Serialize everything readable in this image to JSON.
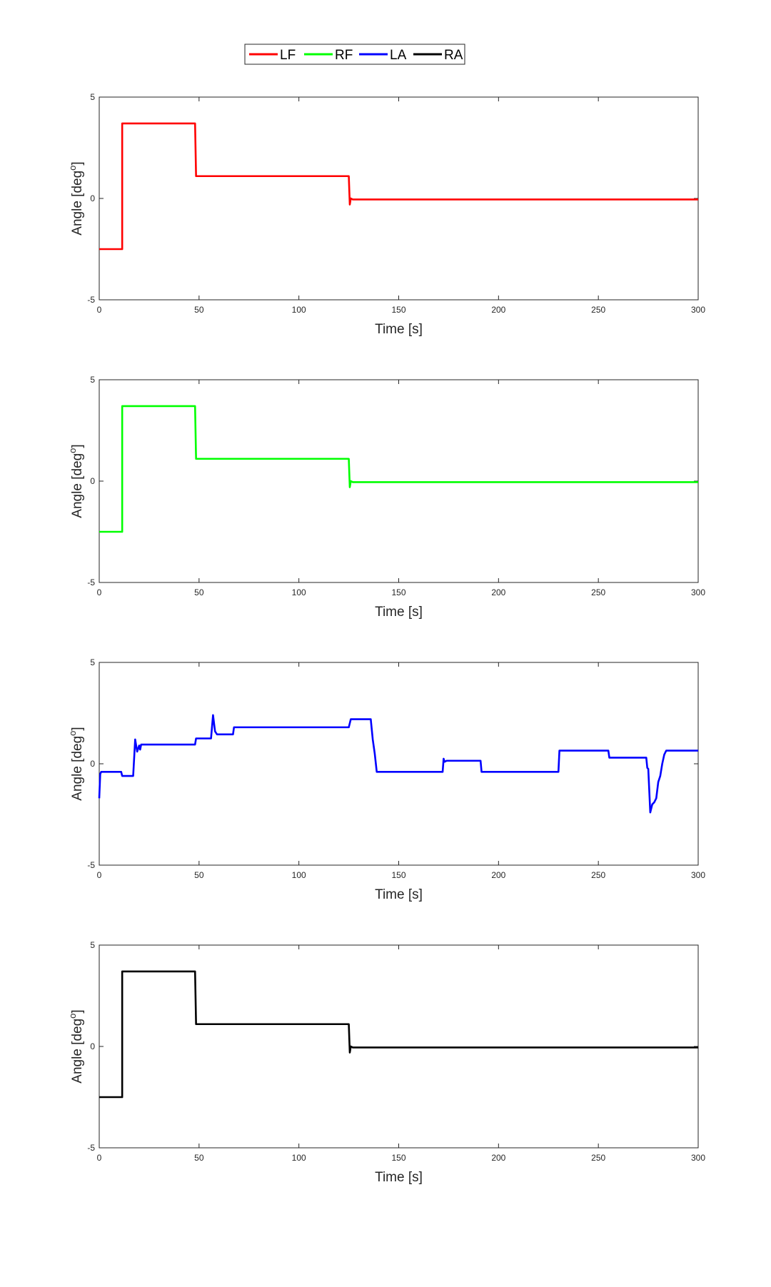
{
  "legend": {
    "entries": [
      {
        "name": "LF",
        "color": "#ff0000"
      },
      {
        "name": "RF",
        "color": "#00ff00"
      },
      {
        "name": "LA",
        "color": "#0000ff"
      },
      {
        "name": "RA",
        "color": "#000000"
      }
    ],
    "placement": "top-center"
  },
  "chart_data": [
    {
      "type": "line",
      "xlabel": "Time [s]",
      "ylabel": "Angle [deg",
      "ylabel_superscript": "o",
      "ylabel_suffix": "]",
      "xlim": [
        0,
        300
      ],
      "ylim": [
        -5,
        5
      ],
      "xticks": [
        "0",
        "50",
        "100",
        "150",
        "200",
        "250",
        "300"
      ],
      "yticks": [
        "-5",
        "0",
        "5"
      ],
      "grid": false,
      "series": [
        {
          "name": "LF",
          "color": "#ff0000",
          "x": [
            0,
            11.5,
            11.5,
            48,
            48.5,
            125,
            125.5,
            126,
            127,
            300
          ],
          "y": [
            -2.5,
            -2.5,
            3.7,
            3.7,
            1.1,
            1.1,
            -0.3,
            0.0,
            -0.05,
            -0.05
          ]
        }
      ]
    },
    {
      "type": "line",
      "xlabel": "Time [s]",
      "ylabel": "Angle [deg",
      "ylabel_superscript": "o",
      "ylabel_suffix": "]",
      "xlim": [
        0,
        300
      ],
      "ylim": [
        -5,
        5
      ],
      "xticks": [
        "0",
        "50",
        "100",
        "150",
        "200",
        "250",
        "300"
      ],
      "yticks": [
        "-5",
        "0",
        "5"
      ],
      "grid": false,
      "series": [
        {
          "name": "RF",
          "color": "#00ff00",
          "x": [
            0,
            11.5,
            11.5,
            48,
            48.5,
            125,
            125.5,
            126,
            127,
            300
          ],
          "y": [
            -2.5,
            -2.5,
            3.7,
            3.7,
            1.1,
            1.1,
            -0.3,
            0.0,
            -0.05,
            -0.05
          ]
        }
      ]
    },
    {
      "type": "line",
      "xlabel": "Time [s]",
      "ylabel": "Angle [deg",
      "ylabel_superscript": "o",
      "ylabel_suffix": "]",
      "xlim": [
        0,
        300
      ],
      "ylim": [
        -5,
        5
      ],
      "xticks": [
        "0",
        "50",
        "100",
        "150",
        "200",
        "250",
        "300"
      ],
      "yticks": [
        "-5",
        "0",
        "5"
      ],
      "grid": false,
      "series": [
        {
          "name": "LA",
          "color": "#0000ff",
          "x": [
            0,
            0.5,
            1,
            11,
            11.5,
            17,
            18,
            19,
            20,
            20.5,
            21,
            48,
            48.5,
            56,
            57,
            58,
            59,
            67,
            67.5,
            125,
            126,
            136,
            137,
            138,
            139,
            140,
            172,
            172.5,
            173,
            174,
            191,
            191.5,
            230,
            230.5,
            255,
            255.5,
            274,
            274.5,
            275,
            276,
            277,
            278,
            279,
            280,
            281,
            282,
            283,
            284,
            300
          ],
          "y": [
            -1.7,
            -0.5,
            -0.4,
            -0.4,
            -0.6,
            -0.6,
            1.2,
            0.6,
            0.9,
            0.7,
            0.95,
            0.95,
            1.25,
            1.25,
            2.4,
            1.6,
            1.45,
            1.45,
            1.8,
            1.8,
            2.2,
            2.2,
            1.2,
            0.5,
            -0.4,
            -0.4,
            -0.4,
            0.25,
            0.1,
            0.15,
            0.15,
            -0.4,
            -0.4,
            0.65,
            0.65,
            0.3,
            0.3,
            -0.2,
            -0.25,
            -2.4,
            -2.0,
            -1.9,
            -1.7,
            -0.9,
            -0.6,
            0.0,
            0.45,
            0.65,
            0.65
          ]
        }
      ]
    },
    {
      "type": "line",
      "xlabel": "Time [s]",
      "ylabel": "Angle [deg",
      "ylabel_superscript": "o",
      "ylabel_suffix": "]",
      "xlim": [
        0,
        300
      ],
      "ylim": [
        -5,
        5
      ],
      "xticks": [
        "0",
        "50",
        "100",
        "150",
        "200",
        "250",
        "300"
      ],
      "yticks": [
        "-5",
        "0",
        "5"
      ],
      "grid": false,
      "series": [
        {
          "name": "RA",
          "color": "#000000",
          "x": [
            0,
            11.5,
            11.5,
            48,
            48.5,
            125,
            125.5,
            126,
            127,
            300
          ],
          "y": [
            -2.5,
            -2.5,
            3.7,
            3.7,
            1.1,
            1.1,
            -0.3,
            0.0,
            -0.05,
            -0.05
          ]
        }
      ]
    }
  ]
}
